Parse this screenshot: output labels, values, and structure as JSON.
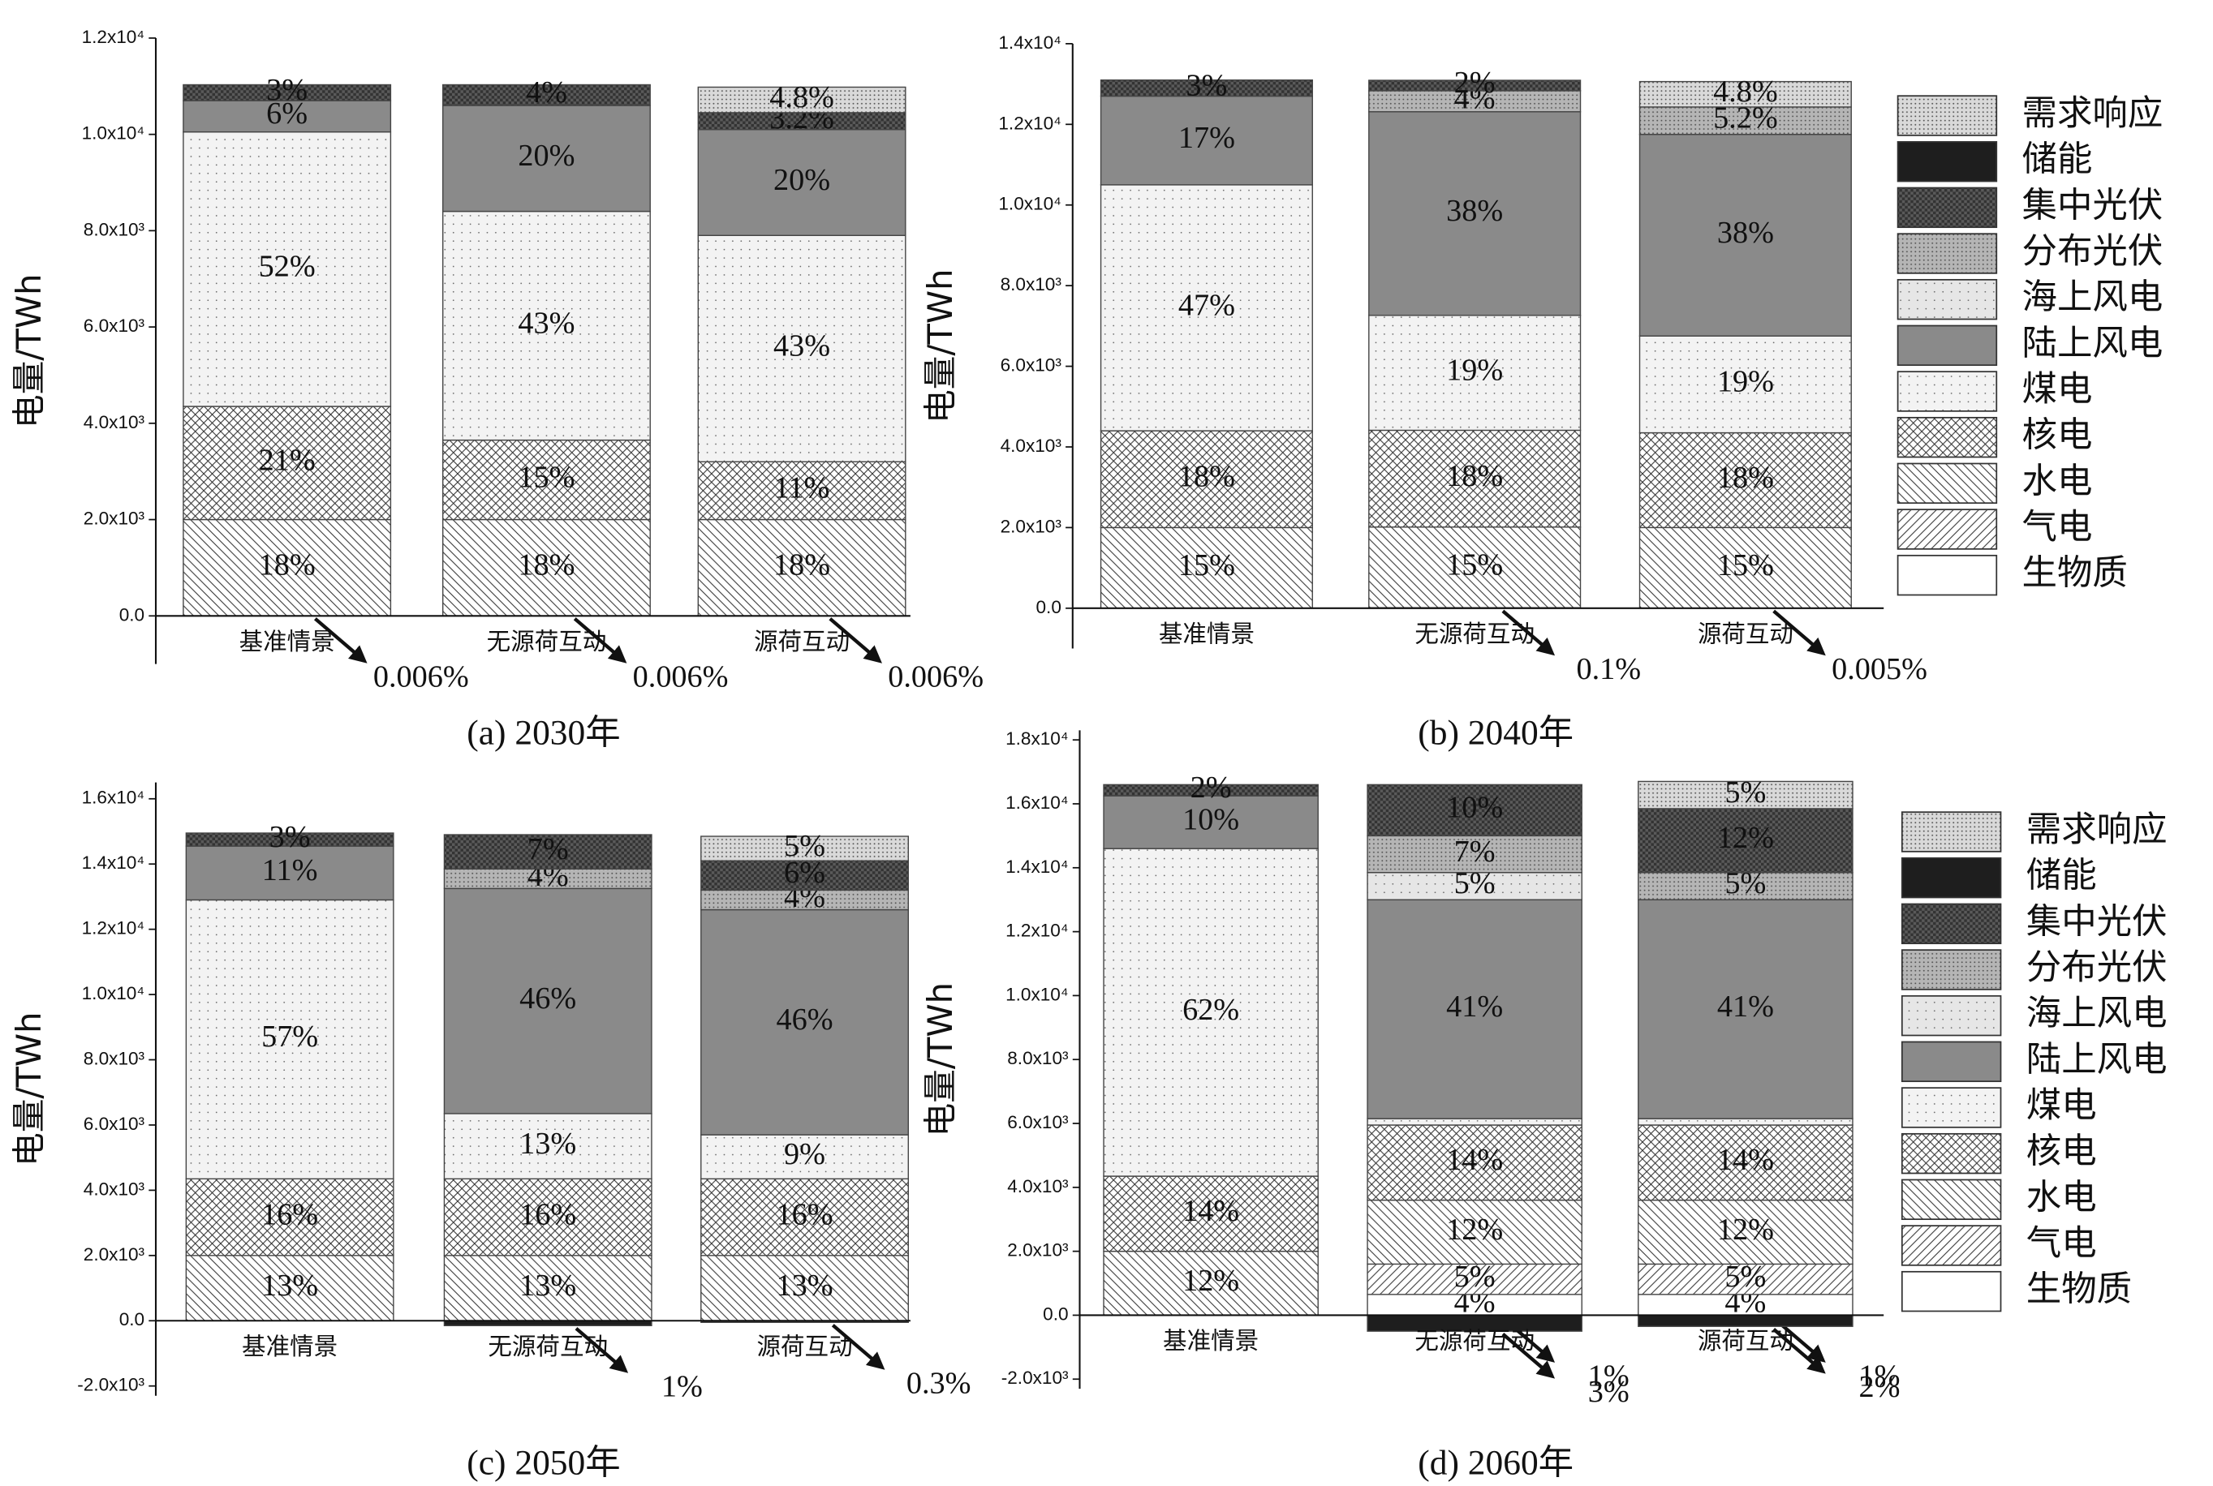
{
  "chart_data": [
    {
      "type": "bar",
      "stacked": true,
      "title": "(a) 2030年",
      "ylabel": "电量/TWh",
      "categories": [
        "基准情景",
        "无源荷互动",
        "源荷互动"
      ],
      "ylim": [
        -1000,
        12000
      ],
      "yticks": [
        {
          "value": 0,
          "label": "0.0"
        },
        {
          "value": 2000,
          "label": "2.0x10³"
        },
        {
          "value": 4000,
          "label": "4.0x10³"
        },
        {
          "value": 6000,
          "label": "6.0x10³"
        },
        {
          "value": 8000,
          "label": "8.0x10³"
        },
        {
          "value": 10000,
          "label": "1.0x10⁴"
        },
        {
          "value": 12000,
          "label": "1.2x10⁴"
        }
      ],
      "series": [
        {
          "name": "生物质",
          "color": "#ffffff",
          "hatch": null,
          "values": [
            0.66,
            0.66,
            0.66
          ],
          "labels": [
            "0.006%",
            "0.006%",
            "0.006%"
          ]
        },
        {
          "name": "气电",
          "color": "#ffffff",
          "hatch": "forward",
          "values": [
            0,
            0,
            0
          ],
          "labels": [
            null,
            null,
            null
          ]
        },
        {
          "name": "水电",
          "color": "#ffffff",
          "hatch": "backward",
          "values": [
            2000,
            2000,
            2000
          ],
          "labels": [
            "18%",
            "18%",
            "18%"
          ]
        },
        {
          "name": "核电",
          "color": "#ffffff",
          "hatch": "cross",
          "values": [
            2350,
            1650,
            1200
          ],
          "labels": [
            "21%",
            "15%",
            "11%"
          ]
        },
        {
          "name": "煤电",
          "color": "#f3f3f3",
          "hatch": "dots",
          "values": [
            5700,
            4750,
            4700
          ],
          "labels": [
            "52%",
            "43%",
            "43%"
          ]
        },
        {
          "name": "陆上风电",
          "color": "#8a8a8a",
          "hatch": null,
          "values": [
            650,
            2200,
            2200
          ],
          "labels": [
            "6%",
            "20%",
            "20%"
          ]
        },
        {
          "name": "海上风电",
          "color": "#e6e6e6",
          "hatch": "dots",
          "values": [
            0,
            0,
            0
          ],
          "labels": [
            null,
            null,
            null
          ]
        },
        {
          "name": "分布光伏",
          "color": "#b5b5b5",
          "hatch": "fine-dots",
          "values": [
            0,
            0,
            0
          ],
          "labels": [
            null,
            null,
            null
          ]
        },
        {
          "name": "集中光伏",
          "color": "#5a5a5a",
          "hatch": "grid",
          "values": [
            330,
            430,
            350
          ],
          "labels": [
            "3%",
            "4%",
            "3.2%"
          ]
        },
        {
          "name": "储能",
          "color": "#1e1e1e",
          "hatch": null,
          "values": [
            0,
            0,
            0
          ],
          "labels": [
            null,
            null,
            null
          ]
        },
        {
          "name": "需求响应",
          "color": "#d9d9d9",
          "hatch": "fine-dots",
          "values": [
            0,
            0,
            530
          ],
          "labels": [
            null,
            null,
            "4.8%"
          ]
        }
      ]
    },
    {
      "type": "bar",
      "stacked": true,
      "title": "(b) 2040年",
      "ylabel": "电量/TWh",
      "legend": "right",
      "categories": [
        "基准情景",
        "无源荷互动",
        "源荷互动"
      ],
      "ylim": [
        -1000,
        14000
      ],
      "yticks": [
        {
          "value": 0,
          "label": "0.0"
        },
        {
          "value": 2000,
          "label": "2.0x10³"
        },
        {
          "value": 4000,
          "label": "4.0x10³"
        },
        {
          "value": 6000,
          "label": "6.0x10³"
        },
        {
          "value": 8000,
          "label": "8.0x10³"
        },
        {
          "value": 10000,
          "label": "1.0x10⁴"
        },
        {
          "value": 12000,
          "label": "1.2x10⁴"
        },
        {
          "value": 14000,
          "label": "1.4x10⁴"
        }
      ],
      "series": [
        {
          "name": "生物质",
          "color": "#ffffff",
          "hatch": null,
          "values": [
            0,
            13,
            0.65
          ],
          "labels": [
            null,
            "0.1%",
            "0.005%"
          ]
        },
        {
          "name": "气电",
          "color": "#ffffff",
          "hatch": "forward",
          "values": [
            0,
            0,
            0
          ],
          "labels": [
            null,
            null,
            null
          ]
        },
        {
          "name": "水电",
          "color": "#ffffff",
          "hatch": "backward",
          "values": [
            2000,
            2000,
            2000
          ],
          "labels": [
            "15%",
            "15%",
            "15%"
          ]
        },
        {
          "name": "核电",
          "color": "#ffffff",
          "hatch": "cross",
          "values": [
            2400,
            2400,
            2350
          ],
          "labels": [
            "18%",
            "18%",
            "18%"
          ]
        },
        {
          "name": "煤电",
          "color": "#f3f3f3",
          "hatch": "dots",
          "values": [
            6100,
            2850,
            2400
          ],
          "labels": [
            "47%",
            "19%",
            "19%"
          ]
        },
        {
          "name": "陆上风电",
          "color": "#8a8a8a",
          "hatch": null,
          "values": [
            2200,
            5050,
            5000
          ],
          "labels": [
            "17%",
            "38%",
            "38%"
          ]
        },
        {
          "name": "海上风电",
          "color": "#e6e6e6",
          "hatch": "dots",
          "values": [
            0,
            0,
            0
          ],
          "labels": [
            null,
            null,
            null
          ]
        },
        {
          "name": "分布光伏",
          "color": "#b5b5b5",
          "hatch": "fine-dots",
          "values": [
            0,
            520,
            680
          ],
          "labels": [
            null,
            "4%",
            "5.2%"
          ]
        },
        {
          "name": "集中光伏",
          "color": "#5a5a5a",
          "hatch": "grid",
          "values": [
            400,
            260,
            0
          ],
          "labels": [
            "3%",
            "2%",
            null
          ]
        },
        {
          "name": "储能",
          "color": "#1e1e1e",
          "hatch": null,
          "values": [
            0,
            0,
            0
          ],
          "labels": [
            null,
            null,
            null
          ]
        },
        {
          "name": "需求响应",
          "color": "#d9d9d9",
          "hatch": "fine-dots",
          "values": [
            0,
            0,
            630
          ],
          "labels": [
            null,
            null,
            "4.8%"
          ]
        }
      ]
    },
    {
      "type": "bar",
      "stacked": true,
      "title": "(c) 2050年",
      "ylabel": "电量/TWh",
      "categories": [
        "基准情景",
        "无源荷互动",
        "源荷互动"
      ],
      "ylim": [
        -2300,
        16500
      ],
      "yticks": [
        {
          "value": -2000,
          "label": "-2.0x10³"
        },
        {
          "value": 0,
          "label": "0.0"
        },
        {
          "value": 2000,
          "label": "2.0x10³"
        },
        {
          "value": 4000,
          "label": "4.0x10³"
        },
        {
          "value": 6000,
          "label": "6.0x10³"
        },
        {
          "value": 8000,
          "label": "8.0x10³"
        },
        {
          "value": 10000,
          "label": "1.0x10⁴"
        },
        {
          "value": 12000,
          "label": "1.2x10⁴"
        },
        {
          "value": 14000,
          "label": "1.4x10⁴"
        },
        {
          "value": 16000,
          "label": "1.6x10⁴"
        }
      ],
      "series": [
        {
          "name": "生物质",
          "color": "#ffffff",
          "hatch": null,
          "values": [
            0,
            0,
            0
          ],
          "labels": [
            null,
            null,
            null
          ]
        },
        {
          "name": "气电",
          "color": "#ffffff",
          "hatch": "forward",
          "values": [
            0,
            0,
            0
          ],
          "labels": [
            null,
            null,
            null
          ]
        },
        {
          "name": "水电",
          "color": "#ffffff",
          "hatch": "backward",
          "values": [
            2000,
            2000,
            2000
          ],
          "labels": [
            "13%",
            "13%",
            "13%"
          ]
        },
        {
          "name": "核电",
          "color": "#ffffff",
          "hatch": "cross",
          "values": [
            2350,
            2350,
            2350
          ],
          "labels": [
            "16%",
            "16%",
            "16%"
          ]
        },
        {
          "name": "煤电",
          "color": "#f3f3f3",
          "hatch": "dots",
          "values": [
            8550,
            2000,
            1350
          ],
          "labels": [
            "57%",
            "13%",
            "9%"
          ]
        },
        {
          "name": "陆上风电",
          "color": "#8a8a8a",
          "hatch": null,
          "values": [
            1650,
            6900,
            6900
          ],
          "labels": [
            "11%",
            "46%",
            "46%"
          ]
        },
        {
          "name": "海上风电",
          "color": "#e6e6e6",
          "hatch": "dots",
          "values": [
            0,
            0,
            0
          ],
          "labels": [
            null,
            null,
            null
          ]
        },
        {
          "name": "分布光伏",
          "color": "#b5b5b5",
          "hatch": "fine-dots",
          "values": [
            0,
            600,
            600
          ],
          "labels": [
            null,
            "4%",
            "4%"
          ]
        },
        {
          "name": "集中光伏",
          "color": "#5a5a5a",
          "hatch": "grid",
          "values": [
            400,
            1050,
            900
          ],
          "labels": [
            "3%",
            "7%",
            "6%"
          ]
        },
        {
          "name": "储能",
          "color": "#1e1e1e",
          "hatch": null,
          "values": [
            0,
            -150,
            -50
          ],
          "labels": [
            null,
            "1%",
            "0.3%"
          ]
        },
        {
          "name": "需求响应",
          "color": "#d9d9d9",
          "hatch": "fine-dots",
          "values": [
            0,
            0,
            750
          ],
          "labels": [
            null,
            null,
            "5%"
          ]
        }
      ]
    },
    {
      "type": "bar",
      "stacked": true,
      "title": "(d) 2060年",
      "ylabel": "电量/TWh",
      "legend": "right",
      "categories": [
        "基准情景",
        "无源荷互动",
        "源荷互动"
      ],
      "ylim": [
        -2300,
        18300
      ],
      "yticks": [
        {
          "value": -2000,
          "label": "-2.0x10³"
        },
        {
          "value": 0,
          "label": "0.0"
        },
        {
          "value": 2000,
          "label": "2.0x10³"
        },
        {
          "value": 4000,
          "label": "4.0x10³"
        },
        {
          "value": 6000,
          "label": "6.0x10³"
        },
        {
          "value": 8000,
          "label": "8.0x10³"
        },
        {
          "value": 10000,
          "label": "1.0x10⁴"
        },
        {
          "value": 12000,
          "label": "1.2x10⁴"
        },
        {
          "value": 14000,
          "label": "1.4x10⁴"
        },
        {
          "value": 16000,
          "label": "1.6x10⁴"
        },
        {
          "value": 18000,
          "label": "1.8x10⁴"
        }
      ],
      "series": [
        {
          "name": "生物质",
          "color": "#ffffff",
          "hatch": null,
          "values": [
            0,
            650,
            650
          ],
          "labels": [
            null,
            "4%",
            "4%"
          ]
        },
        {
          "name": "气电",
          "color": "#ffffff",
          "hatch": "forward",
          "values": [
            0,
            950,
            950
          ],
          "labels": [
            null,
            "5%",
            "5%"
          ]
        },
        {
          "name": "水电",
          "color": "#ffffff",
          "hatch": "backward",
          "values": [
            2000,
            2000,
            2000
          ],
          "labels": [
            "12%",
            "12%",
            "12%"
          ]
        },
        {
          "name": "核电",
          "color": "#ffffff",
          "hatch": "cross",
          "values": [
            2350,
            2350,
            2350
          ],
          "labels": [
            "14%",
            "14%",
            "14%"
          ]
        },
        {
          "name": "煤电",
          "color": "#f3f3f3",
          "hatch": "dots",
          "values": [
            10250,
            200,
            200
          ],
          "labels": [
            "62%",
            "1%",
            "1%"
          ]
        },
        {
          "name": "陆上风电",
          "color": "#8a8a8a",
          "hatch": null,
          "values": [
            1650,
            6850,
            6850
          ],
          "labels": [
            "10%",
            "41%",
            "41%"
          ]
        },
        {
          "name": "海上风电",
          "color": "#e6e6e6",
          "hatch": "dots",
          "values": [
            0,
            850,
            0
          ],
          "labels": [
            null,
            "5%",
            null
          ]
        },
        {
          "name": "分布光伏",
          "color": "#b5b5b5",
          "hatch": "fine-dots",
          "values": [
            0,
            1150,
            850
          ],
          "labels": [
            null,
            "7%",
            "5%"
          ]
        },
        {
          "name": "集中光伏",
          "color": "#5a5a5a",
          "hatch": "grid",
          "values": [
            350,
            1600,
            2000
          ],
          "labels": [
            "2%",
            "10%",
            "12%"
          ]
        },
        {
          "name": "储能",
          "color": "#1e1e1e",
          "hatch": null,
          "values": [
            0,
            -500,
            -350
          ],
          "labels": [
            null,
            "3%",
            "2%"
          ]
        },
        {
          "name": "需求响应",
          "color": "#d9d9d9",
          "hatch": "fine-dots",
          "values": [
            0,
            0,
            850
          ],
          "labels": [
            null,
            null,
            "5%"
          ]
        }
      ]
    }
  ]
}
